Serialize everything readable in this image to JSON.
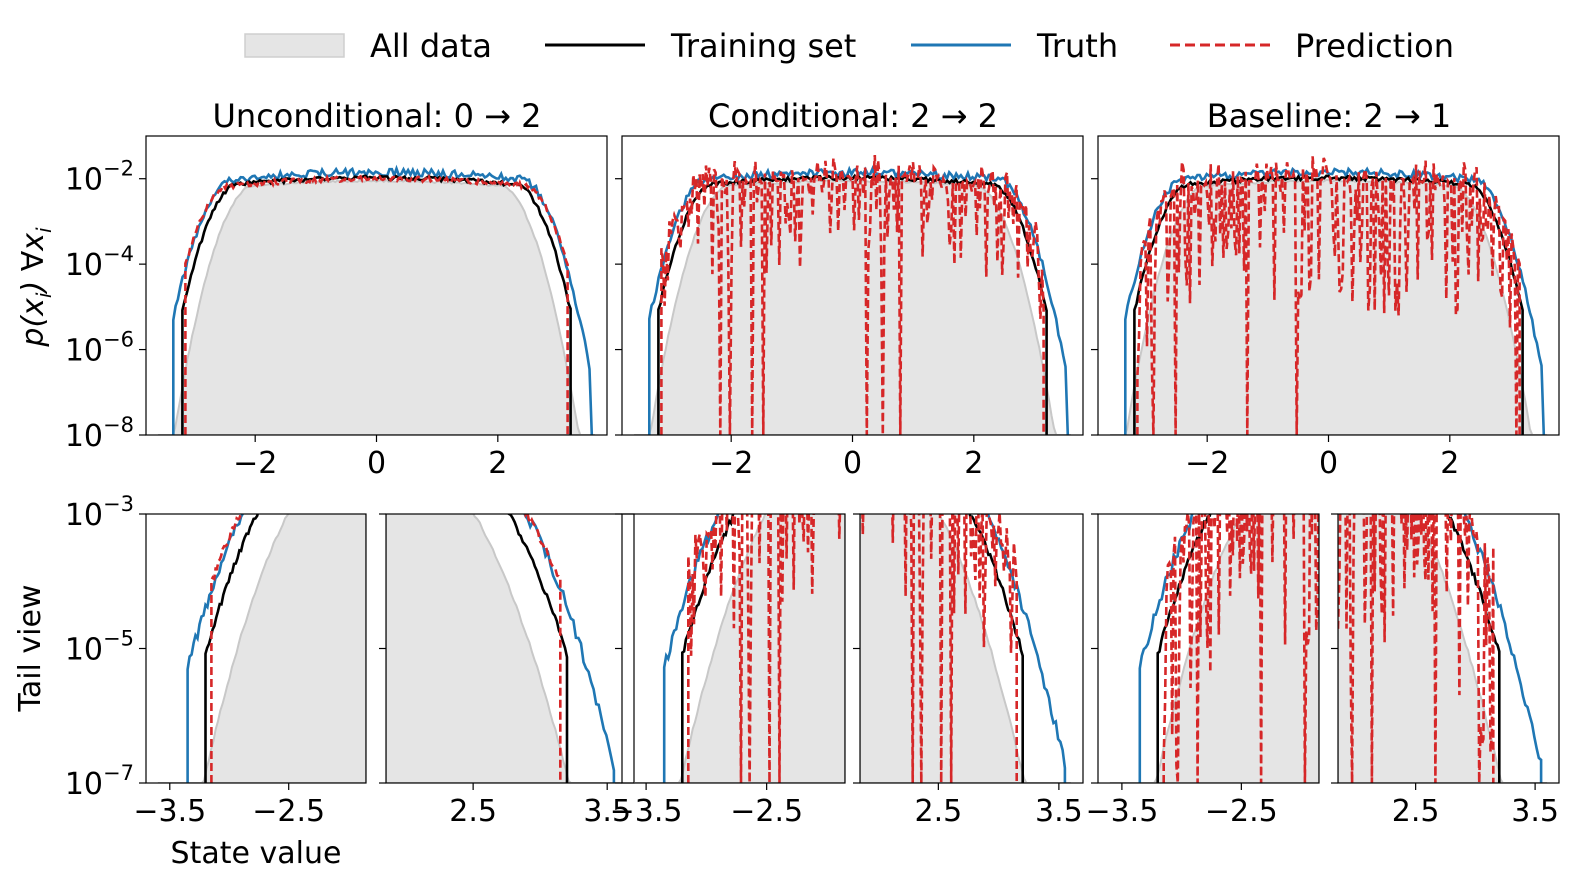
{
  "legend": {
    "items": [
      {
        "key": "all",
        "label": "All data",
        "color": "#e5e5e5",
        "edge": "#c8c8c8",
        "style": "patch"
      },
      {
        "key": "train",
        "label": "Training set",
        "color": "#000000",
        "style": "solid"
      },
      {
        "key": "truth",
        "label": "Truth",
        "color": "#1f77b4",
        "style": "solid"
      },
      {
        "key": "pred",
        "label": "Prediction",
        "color": "#d62728",
        "style": "dashed"
      }
    ]
  },
  "columns": [
    {
      "title": "Unconditional: 0 → 2",
      "seed": 3,
      "pred_mode": "smooth"
    },
    {
      "title": "Conditional: 2 → 2",
      "seed": 11,
      "pred_mode": "spiky"
    },
    {
      "title": "Baseline: 2 → 1",
      "seed": 23,
      "pred_mode": "spikier"
    }
  ],
  "top_row": {
    "ylabel": "p(x_i) ∀x_i",
    "ylabel_parts": [
      "p(x",
      "i",
      ") ∀x",
      "i"
    ],
    "yticks": [
      {
        "value": -2,
        "base": "10",
        "exp": "−2"
      },
      {
        "value": -4,
        "base": "10",
        "exp": "−4"
      },
      {
        "value": -6,
        "base": "10",
        "exp": "−6"
      },
      {
        "value": -8,
        "base": "10",
        "exp": "−8"
      }
    ],
    "xticks": [
      {
        "value": -2,
        "label": "−2"
      },
      {
        "value": 0,
        "label": "0"
      },
      {
        "value": 2,
        "label": "2"
      }
    ]
  },
  "bottom_row": {
    "ylabel": "Tail view",
    "xlabel": "State value",
    "yticks": [
      {
        "value": -3,
        "base": "10",
        "exp": "−3"
      },
      {
        "value": -5,
        "base": "10",
        "exp": "−5"
      },
      {
        "value": -7,
        "base": "10",
        "exp": "−7"
      }
    ],
    "left_xticks": [
      {
        "value": -3.5,
        "label": "−3.5"
      },
      {
        "value": -2.5,
        "label": "−2.5"
      }
    ],
    "right_xticks": [
      {
        "value": 2.5,
        "label": "2.5"
      },
      {
        "value": 3.5,
        "label": "3.5"
      }
    ]
  },
  "chart_data": {
    "type": "line",
    "yscale": "log",
    "x_domain_top": [
      -3.8,
      3.8
    ],
    "ylim_top_log10": [
      -8,
      -1
    ],
    "x_domain_left_tail": [
      -3.7,
      -1.85
    ],
    "x_domain_right_tail": [
      1.85,
      3.7
    ],
    "ylim_tail_log10": [
      -7,
      -3
    ],
    "series": [
      {
        "name": "All data",
        "support": [
          -3.6,
          3.6
        ],
        "plateau_log10": -2.05,
        "rolloff_at": 2.1,
        "type": "area"
      },
      {
        "name": "Training set",
        "support": [
          -3.2,
          3.2
        ],
        "plateau_log10": -1.98,
        "rolloff_at": 2.35
      },
      {
        "name": "Truth",
        "support": [
          -3.35,
          3.55
        ],
        "plateau_log10": -1.85,
        "rolloff_at": 2.45
      },
      {
        "name": "Prediction",
        "support": [
          -3.15,
          3.15
        ],
        "plateau_log10": -2.0,
        "rolloff_at": 2.5
      }
    ]
  }
}
